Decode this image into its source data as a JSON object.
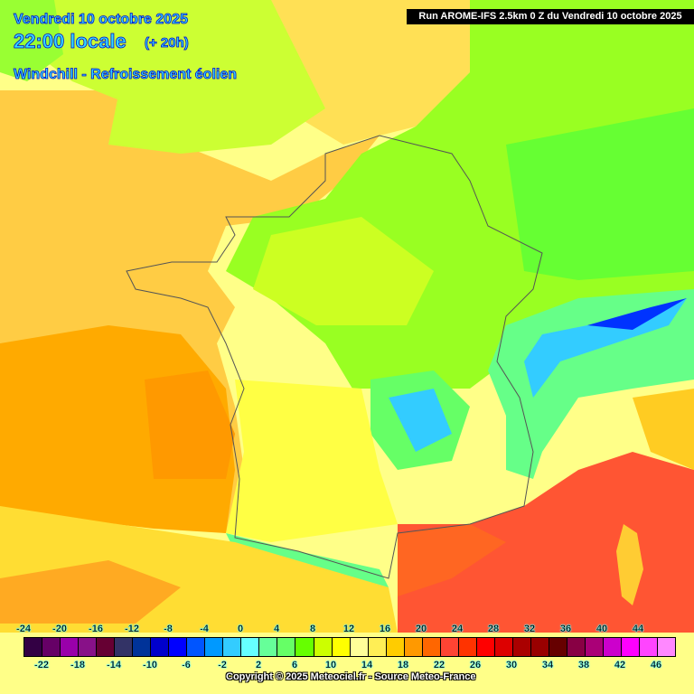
{
  "header": {
    "date": "Vendredi 10 octobre 2025",
    "time": "22:00 locale",
    "lead": "(+ 20h)",
    "parameter": "Windchill - Refroissement éolien",
    "run": "Run AROME-IFS 2.5km 0 Z du Vendredi 10 octobre 2025"
  },
  "legend": {
    "top_labels": [
      "-24",
      "-20",
      "-16",
      "-12",
      "-8",
      "-4",
      "0",
      "4",
      "8",
      "12",
      "16",
      "20",
      "24",
      "28",
      "32",
      "36",
      "40",
      "44"
    ],
    "bottom_labels": [
      "-22",
      "-18",
      "-14",
      "-10",
      "-6",
      "-2",
      "2",
      "6",
      "10",
      "14",
      "18",
      "22",
      "26",
      "30",
      "34",
      "38",
      "42",
      "46"
    ],
    "colors": [
      "#330044",
      "#660066",
      "#9900aa",
      "#881188",
      "#660033",
      "#333366",
      "#003399",
      "#0000cc",
      "#0000ff",
      "#0055ff",
      "#0099ff",
      "#33ccff",
      "#66ffff",
      "#66ff99",
      "#66ff66",
      "#66ff00",
      "#ccff00",
      "#ffff00",
      "#ffff99",
      "#ffee55",
      "#ffcc00",
      "#ff9900",
      "#ff6600",
      "#ff4433",
      "#ff3300",
      "#ff0000",
      "#dd0000",
      "#aa0000",
      "#990000",
      "#660000",
      "#880044",
      "#aa0077",
      "#cc00cc",
      "#ff00ff",
      "#ff44ff",
      "#ff88ff"
    ]
  },
  "copyright": "Copyright © 2025 Meteociel.fr - Source Meteo-France"
}
